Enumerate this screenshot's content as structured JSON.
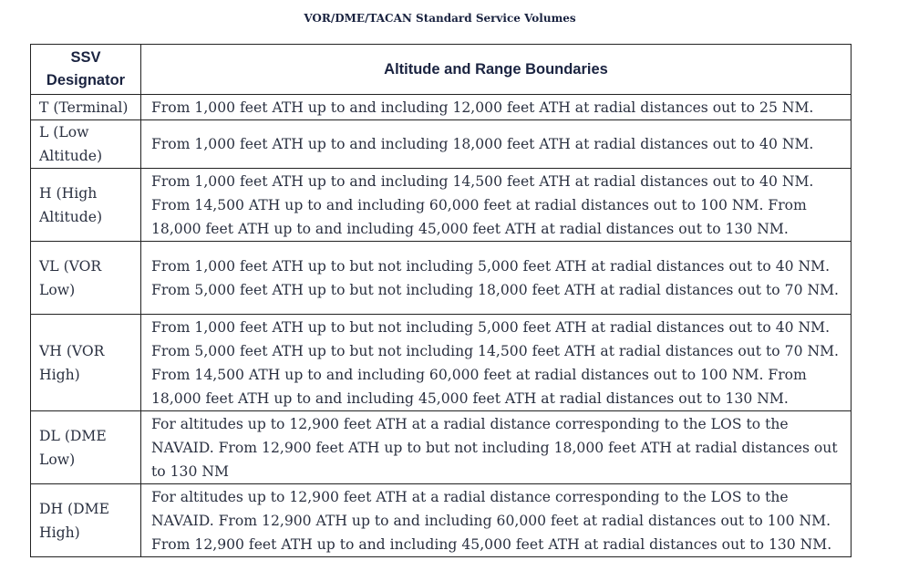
{
  "title": "VOR/DME/TACAN Standard Service Volumes",
  "table": {
    "headers": {
      "designator": "SSV Designator",
      "boundaries": "Altitude and Range Boundaries"
    },
    "rows": [
      {
        "designator": "T (Terminal)",
        "boundaries": "From 1,000 feet ATH up to and including 12,000 feet ATH at radial distances out to 25 NM."
      },
      {
        "designator": "L (Low Altitude)",
        "boundaries": "From 1,000 feet ATH up to and including 18,000 feet ATH at radial distances out to 40 NM."
      },
      {
        "designator": "H (High Altitude)",
        "boundaries": "From 1,000 feet ATH up to and including 14,500 feet ATH at radial distances out to 40 NM. From 14,500 ATH up to and including 60,000 feet at radial distances out to 100 NM. From 18,000 feet ATH up to and including 45,000 feet ATH at radial distances out to 130 NM."
      },
      {
        "designator": "VL (VOR Low)",
        "boundaries": "From 1,000 feet ATH up to but not including 5,000 feet ATH at radial distances out to 40 NM. From 5,000 feet ATH up to but not including 18,000 feet ATH at radial distances out to 70 NM."
      },
      {
        "designator": "VH (VOR High)",
        "boundaries": "From 1,000 feet ATH up to but not including 5,000 feet ATH at radial distances out to 40 NM. From 5,000 feet ATH up to but not including 14,500 feet ATH at radial distances out to 70 NM. From 14,500 ATH up to and including 60,000 feet at radial distances out to 100 NM. From 18,000 feet ATH up to and including 45,000 feet ATH at radial distances out to 130 NM."
      },
      {
        "designator": "DL (DME Low)",
        "boundaries": "For altitudes up to 12,900 feet ATH at a radial distance corresponding to the LOS to the NAVAID. From 12,900 feet ATH up to but not including 18,000 feet ATH at radial distances out to 130 NM"
      },
      {
        "designator": "DH (DME High)",
        "boundaries": "For altitudes up to 12,900 feet ATH at a radial distance corresponding to the LOS to the NAVAID. From 12,900 ATH up to and including 60,000 feet at radial distances out to 100 NM. From 12,900 feet ATH up to and including 45,000 feet ATH at radial distances out to 130 NM."
      }
    ]
  }
}
